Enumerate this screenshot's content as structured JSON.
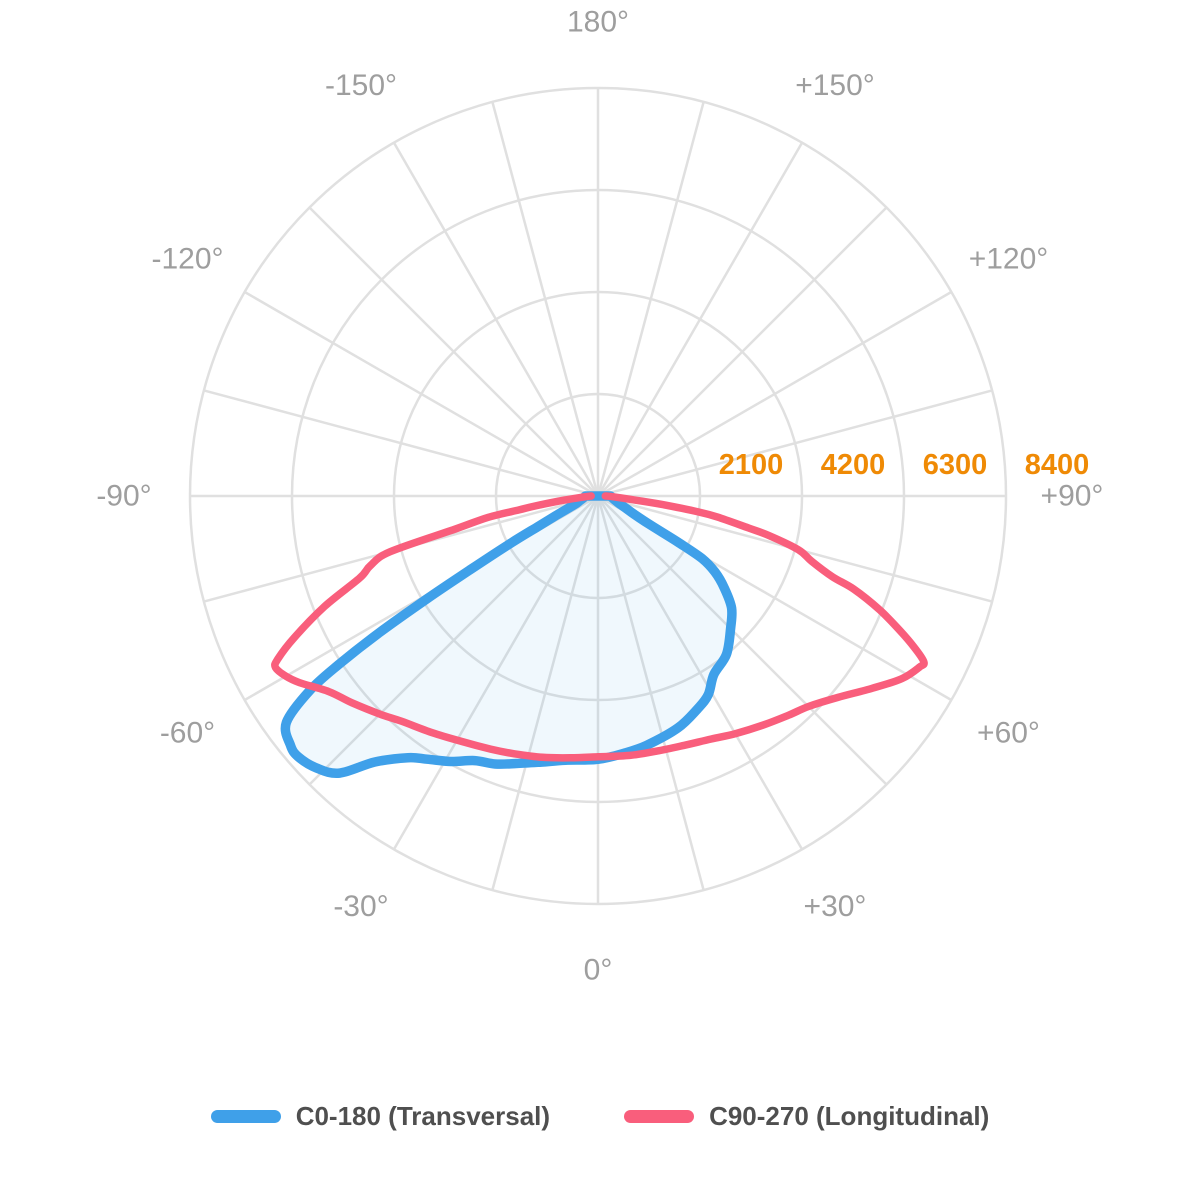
{
  "chart_data": {
    "type": "line",
    "subtype": "polar-photometric",
    "title": "",
    "angle_axis": {
      "zero_position": "bottom",
      "positive_side": "right",
      "grid_step_deg": 15,
      "label_color": "#9E9E9E",
      "labels": [
        {
          "deg": 180,
          "text": "180°"
        },
        {
          "deg": 150,
          "text": "+150°"
        },
        {
          "deg": 120,
          "text": "+120°"
        },
        {
          "deg": 90,
          "text": "+90°"
        },
        {
          "deg": 60,
          "text": "+60°"
        },
        {
          "deg": 30,
          "text": "+30°"
        },
        {
          "deg": 0,
          "text": "0°"
        },
        {
          "deg": -30,
          "text": "-30°"
        },
        {
          "deg": -60,
          "text": "-60°"
        },
        {
          "deg": -90,
          "text": "-90°"
        },
        {
          "deg": -120,
          "text": "-120°"
        },
        {
          "deg": -150,
          "text": "-150°"
        }
      ]
    },
    "radial_axis": {
      "min": 0,
      "max": 8400,
      "label_color": "#EF8A05",
      "ticks": [
        {
          "value": 2100,
          "text": "2100"
        },
        {
          "value": 4200,
          "text": "4200"
        },
        {
          "value": 6300,
          "text": "6300"
        },
        {
          "value": 8400,
          "text": "8400"
        }
      ]
    },
    "grid_color": "#E0E0E0",
    "series": [
      {
        "name": "C0-180 (Transversal)",
        "color": "#3FA0E9",
        "fill": "rgba(63,160,233,0.08)",
        "stroke_width": 9.5,
        "closed": true,
        "points_deg_value": [
          [
            -90,
            260
          ],
          [
            -83,
            300
          ],
          [
            -76,
            380
          ],
          [
            -71,
            470
          ],
          [
            -68,
            630
          ],
          [
            -65,
            960
          ],
          [
            -63,
            1400
          ],
          [
            -61.5,
            2100
          ],
          [
            -60,
            3060
          ],
          [
            -59,
            4090
          ],
          [
            -58,
            5310
          ],
          [
            -57,
            6340
          ],
          [
            -56,
            7150
          ],
          [
            -54,
            7930
          ],
          [
            -51,
            8150
          ],
          [
            -49,
            8180
          ],
          [
            -46,
            8060
          ],
          [
            -43,
            7800
          ],
          [
            -40,
            7150
          ],
          [
            -36,
            6660
          ],
          [
            -33,
            6460
          ],
          [
            -29,
            6250
          ],
          [
            -25,
            6010
          ],
          [
            -21,
            5910
          ],
          [
            -17,
            5760
          ],
          [
            -12,
            5600
          ],
          [
            -7,
            5480
          ],
          [
            0,
            5420
          ],
          [
            6,
            5320
          ],
          [
            11,
            5230
          ],
          [
            19,
            5050
          ],
          [
            25,
            4840
          ],
          [
            29,
            4680
          ],
          [
            33,
            4380
          ],
          [
            39,
            4200
          ],
          [
            45,
            3860
          ],
          [
            50,
            3590
          ],
          [
            54,
            3210
          ],
          [
            57,
            2870
          ],
          [
            59,
            2500
          ],
          [
            60,
            1900
          ],
          [
            61,
            1250
          ],
          [
            63,
            850
          ],
          [
            66,
            640
          ],
          [
            70,
            480
          ],
          [
            75,
            380
          ],
          [
            82,
            300
          ],
          [
            90,
            260
          ]
        ]
      },
      {
        "name": "C90-270 (Longitudinal)",
        "color": "#F95E7C",
        "fill": "none",
        "stroke_width": 7.5,
        "closed": false,
        "points_deg_value": [
          [
            -90,
            140
          ],
          [
            -86,
            300
          ],
          [
            -83,
            700
          ],
          [
            -81,
            1300
          ],
          [
            -80,
            1650
          ],
          [
            -79,
            2300
          ],
          [
            -77,
            3000
          ],
          [
            -75,
            4430
          ],
          [
            -73,
            4900
          ],
          [
            -71,
            5190
          ],
          [
            -68,
            6070
          ],
          [
            -65,
            6900
          ],
          [
            -63,
            7400
          ],
          [
            -62,
            7520
          ],
          [
            -60,
            7420
          ],
          [
            -58,
            7250
          ],
          [
            -54,
            6850
          ],
          [
            -50,
            6620
          ],
          [
            -45,
            6350
          ],
          [
            -41,
            6150
          ],
          [
            -35,
            5950
          ],
          [
            -29,
            5780
          ],
          [
            -23,
            5660
          ],
          [
            -18,
            5580
          ],
          [
            -12,
            5500
          ],
          [
            -6,
            5420
          ],
          [
            0,
            5370
          ],
          [
            7,
            5380
          ],
          [
            13,
            5390
          ],
          [
            19,
            5430
          ],
          [
            25,
            5520
          ],
          [
            30,
            5650
          ],
          [
            36,
            5820
          ],
          [
            41,
            5980
          ],
          [
            45,
            6130
          ],
          [
            50,
            6450
          ],
          [
            55,
            6900
          ],
          [
            59,
            7300
          ],
          [
            62,
            7500
          ],
          [
            63,
            7530
          ],
          [
            64.5,
            7200
          ],
          [
            66,
            6800
          ],
          [
            68,
            6250
          ],
          [
            70,
            5600
          ],
          [
            71,
            5100
          ],
          [
            73,
            4600
          ],
          [
            75,
            4270
          ],
          [
            77,
            3600
          ],
          [
            78,
            3170
          ],
          [
            80,
            2500
          ],
          [
            81,
            2100
          ],
          [
            82.5,
            1300
          ],
          [
            84,
            700
          ],
          [
            87,
            320
          ],
          [
            90,
            150
          ]
        ]
      }
    ],
    "legend_position": "bottom"
  }
}
